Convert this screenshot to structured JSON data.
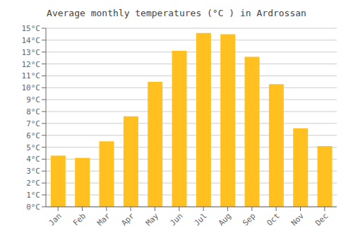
{
  "chart_data": {
    "type": "bar",
    "title": "Average monthly temperatures (°C ) in Ardrossan",
    "categories": [
      "Jan",
      "Feb",
      "Mar",
      "Apr",
      "May",
      "Jun",
      "Jul",
      "Aug",
      "Sep",
      "Oct",
      "Nov",
      "Dec"
    ],
    "values": [
      4.3,
      4.1,
      5.5,
      7.6,
      10.5,
      13.1,
      14.6,
      14.5,
      12.6,
      10.3,
      6.6,
      5.1
    ],
    "color": "#FFC020",
    "ylim": [
      0,
      15
    ],
    "yticks": [
      {
        "value": 0,
        "label": "0°C"
      },
      {
        "value": 1,
        "label": "1°C"
      },
      {
        "value": 2,
        "label": "2°C"
      },
      {
        "value": 3,
        "label": "3°C"
      },
      {
        "value": 4,
        "label": "4°C"
      },
      {
        "value": 5,
        "label": "5°C"
      },
      {
        "value": 6,
        "label": "6°C"
      },
      {
        "value": 7,
        "label": "7°C"
      },
      {
        "value": 8,
        "label": "8°C"
      },
      {
        "value": 9,
        "label": "9°C"
      },
      {
        "value": 10,
        "label": "10°C"
      },
      {
        "value": 11,
        "label": "11°C"
      },
      {
        "value": 12,
        "label": "12°C"
      },
      {
        "value": 13,
        "label": "13°C"
      },
      {
        "value": 14,
        "label": "14°C"
      },
      {
        "value": 15,
        "label": "15°C"
      }
    ],
    "grid": true
  }
}
